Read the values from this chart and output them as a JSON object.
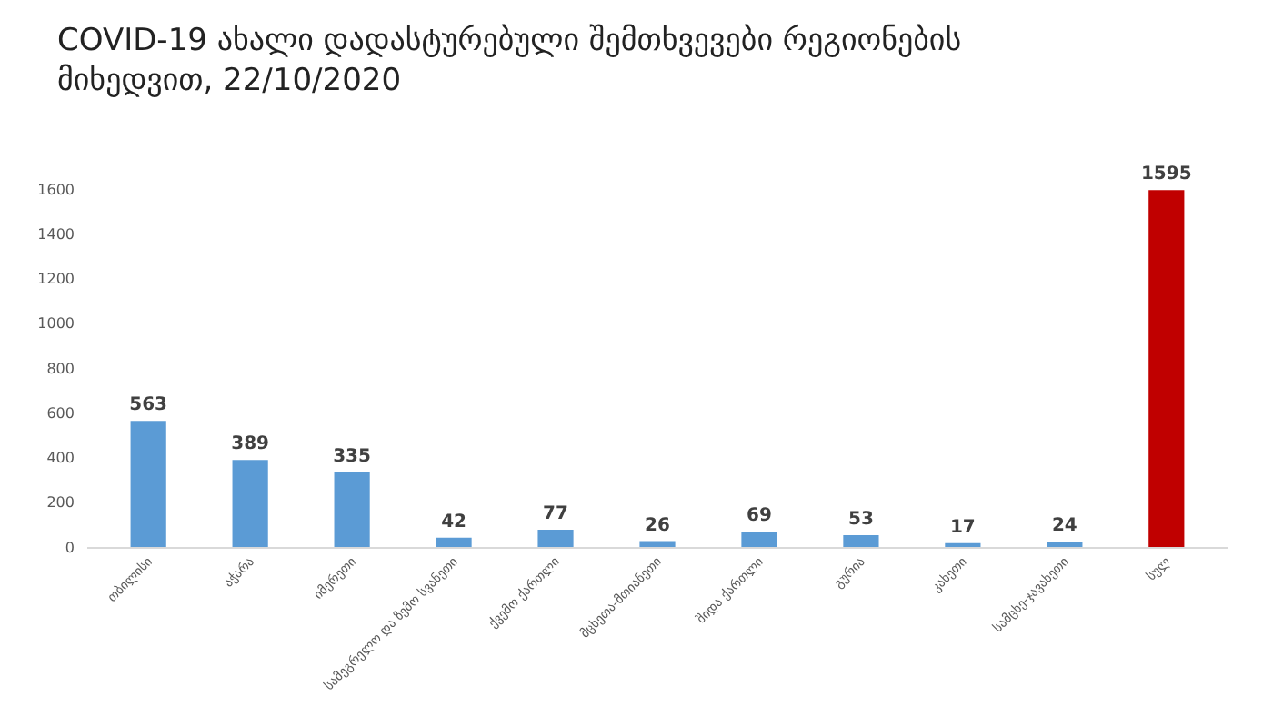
{
  "chart_data": {
    "type": "bar",
    "title": "COVID-19 ახალი დადასტურებული შემთხვევები რეგიონების მიხედვით, 22/10/2020",
    "categories": [
      "თბილისი",
      "აჭარა",
      "იმერეთი",
      "სამეგრელო და ზემო სვანეთი",
      "ქვემო ქართლი",
      "მცხეთა-მთიანეთი",
      "შიდა ქართლი",
      "გურია",
      "კახეთი",
      "სამცხე-ჯავახეთი",
      "სულ"
    ],
    "values": [
      563,
      389,
      335,
      42,
      77,
      26,
      69,
      53,
      17,
      24,
      1595
    ],
    "colors": [
      "#5b9bd5",
      "#5b9bd5",
      "#5b9bd5",
      "#5b9bd5",
      "#5b9bd5",
      "#5b9bd5",
      "#5b9bd5",
      "#5b9bd5",
      "#5b9bd5",
      "#5b9bd5",
      "#c00000"
    ],
    "ylim": [
      0,
      1600
    ],
    "yticks": [
      0,
      200,
      400,
      600,
      800,
      1000,
      1200,
      1400,
      1600
    ],
    "data_labels": true,
    "grid": false
  }
}
